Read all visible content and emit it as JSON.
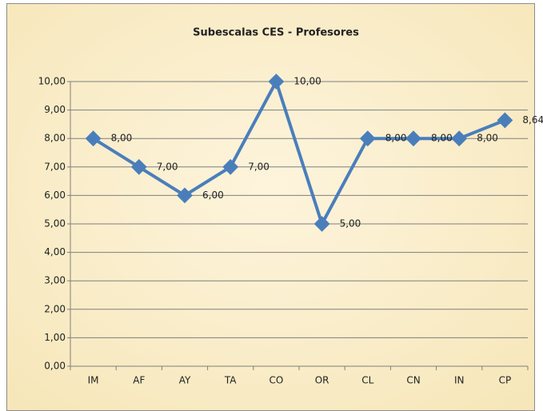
{
  "chart_data": {
    "type": "line",
    "title": "Subescalas CES - Profesores",
    "categories": [
      "IM",
      "AF",
      "AY",
      "TA",
      "CO",
      "OR",
      "CL",
      "CN",
      "IN",
      "CP"
    ],
    "series": [
      {
        "name": "Profesores",
        "color": "#4a7ebb",
        "values": [
          8,
          7,
          6,
          7,
          10,
          5,
          8,
          8,
          8,
          8.64
        ],
        "value_labels": [
          "8,00",
          "7,00",
          "6,00",
          "7,00",
          "10,00",
          "5,00",
          "8,00",
          "8,00",
          "8,00",
          "8,64"
        ]
      }
    ],
    "ylim": [
      0,
      10
    ],
    "yticks": [
      {
        "value": 0,
        "label": "0,00"
      },
      {
        "value": 1,
        "label": "1,00"
      },
      {
        "value": 2,
        "label": "2,00"
      },
      {
        "value": 3,
        "label": "3,00"
      },
      {
        "value": 4,
        "label": "4,00"
      },
      {
        "value": 5,
        "label": "5,00"
      },
      {
        "value": 6,
        "label": "6,00"
      },
      {
        "value": 7,
        "label": "7,00"
      },
      {
        "value": 8,
        "label": "8,00"
      },
      {
        "value": 9,
        "label": "9,00"
      },
      {
        "value": 10,
        "label": "10,00"
      }
    ],
    "grid": true,
    "legend": false
  }
}
